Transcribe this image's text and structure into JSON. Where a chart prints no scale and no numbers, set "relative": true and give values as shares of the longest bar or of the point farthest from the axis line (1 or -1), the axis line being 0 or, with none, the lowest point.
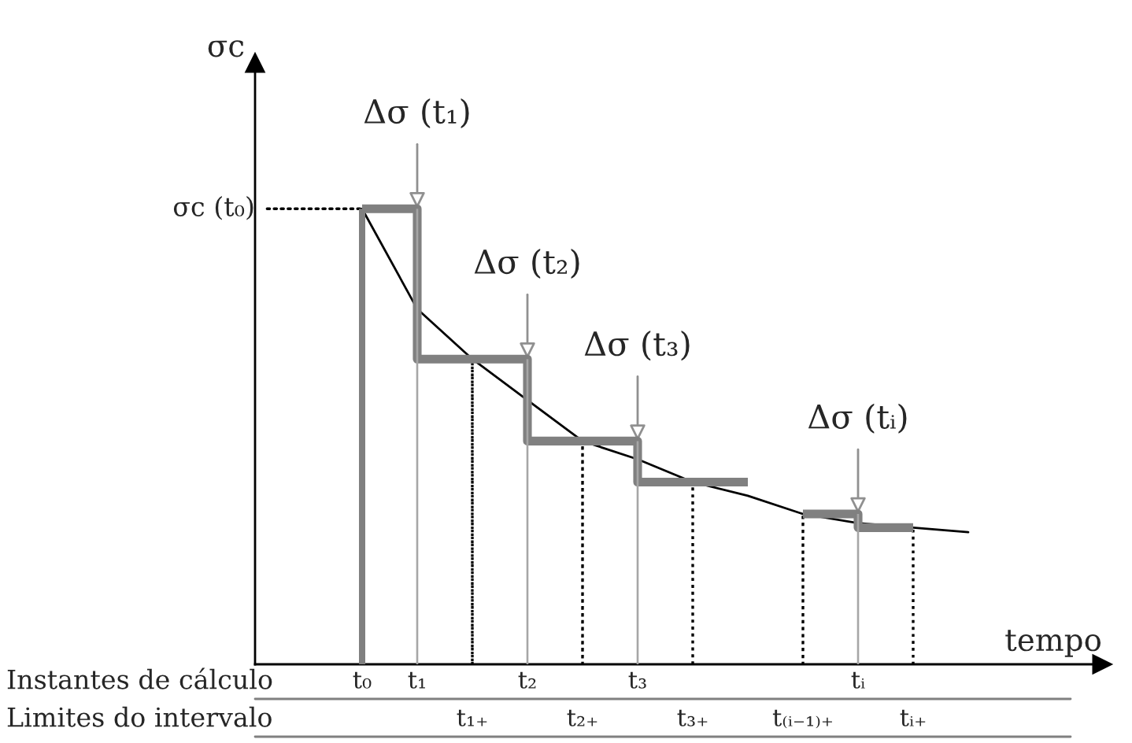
{
  "chart_data": {
    "type": "line",
    "relative": true,
    "xlabel": "tempo",
    "legend": false,
    "marker": "none",
    "categories": [
      "t₀",
      "t₁",
      "t₁₊",
      "t₂",
      "t₂₊",
      "t₃",
      "t₃₊",
      null,
      "t₍ᵢ₋₁₎₊",
      "tᵢ",
      "tᵢ₊",
      null
    ],
    "series": [
      {
        "type": "bar",
        "color": "#808080",
        "line_style": "solid",
        "values": [
          1.0,
          null,
          null,
          null,
          null,
          null,
          null,
          null,
          null,
          null,
          null,
          null
        ]
      },
      {
        "type": "bar",
        "color": "#a6a6a6",
        "line_style": "solid",
        "values": [
          null,
          1.0,
          null,
          0.67,
          null,
          0.49,
          null,
          null,
          null,
          0.33,
          null,
          null
        ]
      },
      {
        "type": "bar",
        "color": "#000000",
        "line_style": "dotted",
        "values": [
          null,
          null,
          0.67,
          null,
          0.49,
          null,
          0.4,
          null,
          0.33,
          null,
          0.3,
          null
        ]
      },
      {
        "color": "#000000",
        "line_style": "solid",
        "values": [
          1.0,
          0.78,
          0.67,
          0.58,
          0.49,
          0.45,
          0.4,
          0.37,
          0.33,
          0.31,
          0.3,
          0.29
        ]
      },
      {
        "type": "step",
        "color": "#808080",
        "line_style": "solid",
        "values": [
          1.0,
          0.67,
          0.67,
          0.49,
          0.49,
          0.4,
          0.4,
          0.4,
          null,
          null,
          null,
          null
        ]
      },
      {
        "type": "step",
        "color": "#808080",
        "line_style": "solid",
        "values": [
          null,
          null,
          null,
          null,
          null,
          null,
          null,
          null,
          0.33,
          0.3,
          0.3,
          null
        ]
      }
    ],
    "annotations": [
      "σc",
      "σc (t₀)",
      {
        "text": "Δσ (t₁)",
        "x": "t₁",
        "y": 1.0
      },
      {
        "text": "Δσ (t₂)",
        "x": "t₂",
        "y": 0.67
      },
      {
        "text": "Δσ (t₃)",
        "x": "t₃",
        "y": 0.49
      },
      {
        "text": "Δσ (tᵢ)",
        "x": "tᵢ",
        "y": 0.33
      },
      "Instantes de cálculo",
      "Limites do intervalo"
    ]
  }
}
